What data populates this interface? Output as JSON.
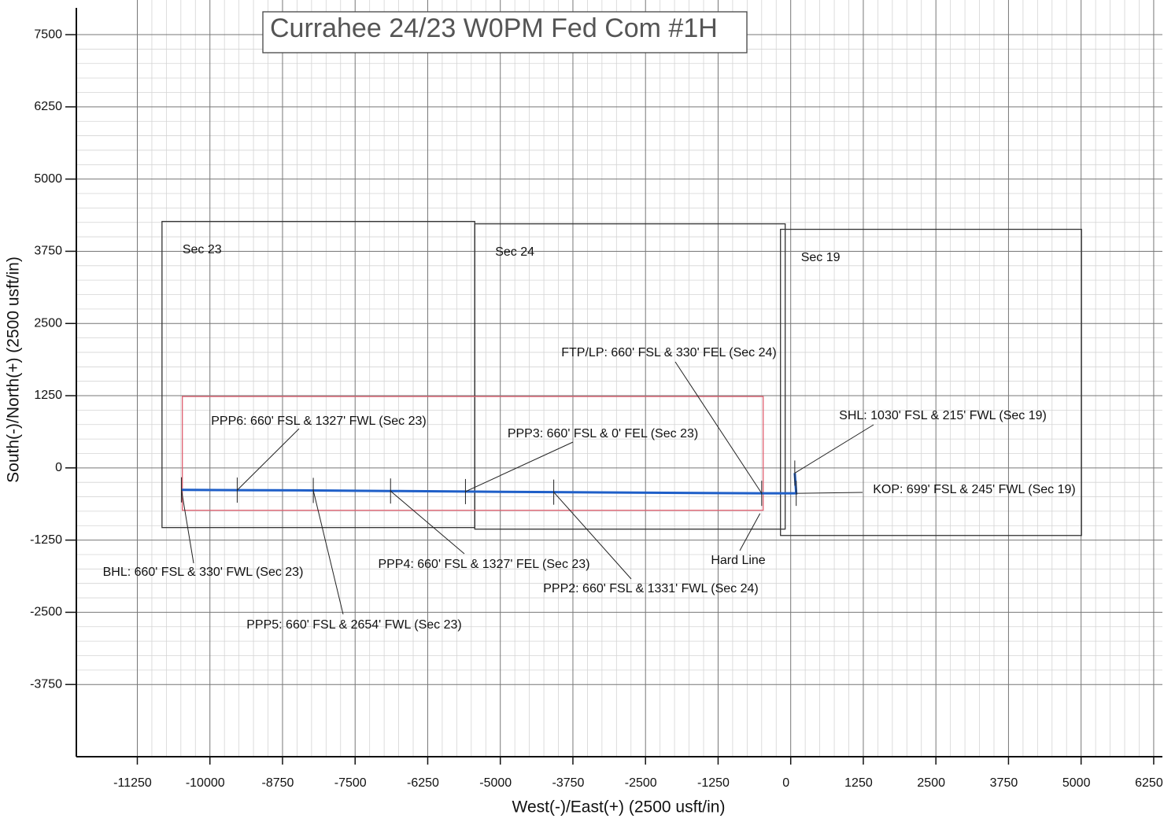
{
  "chart_data": {
    "type": "line",
    "title": "Currahee 24/23 W0PM Fed Com #1H",
    "xlabel": "West(-)/East(+) (2500 usft/in)",
    "ylabel": "South(-)/North(+) (2500 usft/in)",
    "xlim": [
      -12300,
      6400
    ],
    "ylim": [
      -5000,
      8100
    ],
    "xticks": [
      -11250,
      -10000,
      -8750,
      -7500,
      -6250,
      -5000,
      -3750,
      -2500,
      -1250,
      0,
      1250,
      2500,
      3750,
      5000,
      6250
    ],
    "yticks": [
      -3750,
      -2500,
      -1250,
      0,
      1250,
      2500,
      3750,
      5000,
      6250,
      7500
    ],
    "grid": true,
    "series": [
      {
        "color": "#1f5fc8",
        "x": [
          70,
          95,
          -500,
          -4080,
          -5600,
          -6890,
          -8220,
          -9530,
          -10490
        ],
        "y": [
          -90,
          -440,
          -440,
          -420,
          -410,
          -400,
          -390,
          -385,
          -380
        ]
      }
    ],
    "sections": [
      {
        "name": "Sec 23",
        "x": [
          -10825,
          -5440
        ],
        "y": [
          -1033,
          4266
        ]
      },
      {
        "name": "Sec 24",
        "x": [
          -5440,
          -95
        ],
        "y": [
          -1060,
          4225
        ]
      },
      {
        "name": "Sec 19",
        "x": [
          -176,
          5007
        ],
        "y": [
          -1170,
          4130
        ]
      }
    ],
    "hard_line": {
      "label": "Hard Line",
      "color": "#e06070",
      "x": [
        -10475,
        -474
      ],
      "y": [
        -734,
        1236
      ]
    },
    "annotations": [
      {
        "text": "FTP/LP: 660' FSL & 330' FEL (Sec 24)",
        "x": -500,
        "y": -440
      },
      {
        "text": "PPP6: 660' FSL & 1327' FWL (Sec 23)",
        "x": -9530,
        "y": -385
      },
      {
        "text": "PPP3: 660' FSL & 0' FEL (Sec 23)",
        "x": -5600,
        "y": -410
      },
      {
        "text": "SHL: 1030' FSL & 215' FWL (Sec 19)",
        "x": 70,
        "y": -90
      },
      {
        "text": "KOP: 699' FSL & 245' FWL (Sec 19)",
        "x": 95,
        "y": -440
      },
      {
        "text": "BHL: 660' FSL & 330' FWL (Sec 23)",
        "x": -10490,
        "y": -380
      },
      {
        "text": "PPP4: 660' FSL & 1327' FEL (Sec 23)",
        "x": -6890,
        "y": -400
      },
      {
        "text": "PPP2: 660' FSL & 1331' FWL (Sec 24)",
        "x": -4080,
        "y": -420
      },
      {
        "text": "PPP5: 660' FSL & 2654' FWL (Sec 23)",
        "x": -8220,
        "y": -390
      }
    ]
  }
}
